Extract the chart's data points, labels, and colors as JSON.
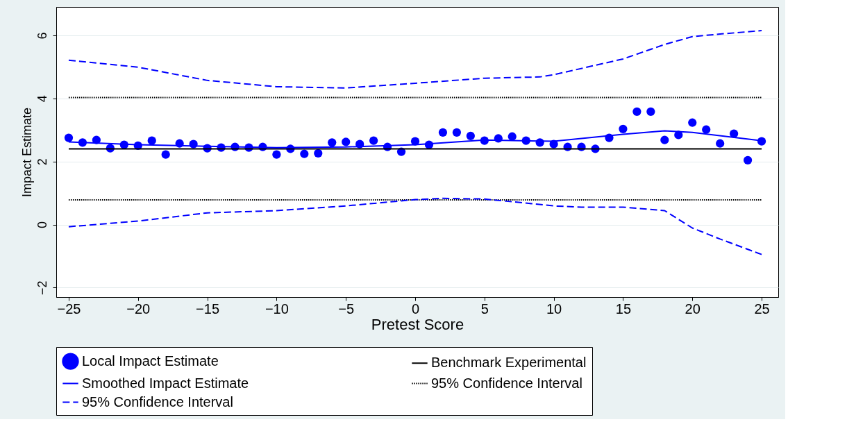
{
  "chart_data": {
    "type": "scatter",
    "xlabel": "Pretest Score",
    "ylabel": "Impact Estimate",
    "xlim": [
      -25.9,
      26.2
    ],
    "ylim": [
      -2.3,
      6.9
    ],
    "xticks": [
      -25,
      -20,
      -15,
      -10,
      -5,
      0,
      5,
      10,
      15,
      20,
      25
    ],
    "yticks": [
      -2,
      0,
      2,
      4,
      6
    ],
    "grid": "y",
    "legend": "bottom",
    "series": [
      {
        "name": "Local Impact Estimate",
        "type": "scatter",
        "marker": "circle",
        "color": "#0000ff",
        "x": [
          -25,
          -24,
          -23,
          -22,
          -21,
          -20,
          -19,
          -18,
          -17,
          -16,
          -15,
          -14,
          -13,
          -12,
          -11,
          -10,
          -9,
          -8,
          -7,
          -6,
          -5,
          -4,
          -3,
          -2,
          -1,
          0,
          1,
          2,
          3,
          4,
          5,
          6,
          7,
          8,
          9,
          10,
          11,
          12,
          13,
          14,
          15,
          16,
          17,
          18,
          19,
          20,
          21,
          22,
          23,
          24,
          25
        ],
        "values": [
          2.75,
          2.6,
          2.68,
          2.42,
          2.53,
          2.5,
          2.66,
          2.22,
          2.57,
          2.55,
          2.42,
          2.44,
          2.46,
          2.44,
          2.46,
          2.22,
          2.4,
          2.24,
          2.26,
          2.6,
          2.62,
          2.55,
          2.66,
          2.46,
          2.31,
          2.64,
          2.53,
          2.92,
          2.92,
          2.81,
          2.66,
          2.73,
          2.79,
          2.66,
          2.6,
          2.55,
          2.46,
          2.46,
          2.4,
          2.75,
          3.03,
          3.58,
          3.58,
          2.68,
          2.84,
          3.23,
          3.01,
          2.57,
          2.88,
          2.04,
          2.64
        ]
      },
      {
        "name": "Benchmark Experimental",
        "type": "line",
        "line_style": "solid",
        "color": "#000000",
        "x": [
          -25,
          25
        ],
        "values": [
          2.4,
          2.4
        ]
      },
      {
        "name": "Smoothed Impact Estimate",
        "type": "line",
        "line_style": "solid",
        "color": "#0000ff",
        "x": [
          -25,
          -20,
          -15,
          -10,
          -5,
          0,
          5,
          10,
          15,
          18,
          20,
          25
        ],
        "values": [
          2.62,
          2.53,
          2.48,
          2.44,
          2.46,
          2.53,
          2.68,
          2.64,
          2.86,
          2.97,
          2.92,
          2.66
        ]
      },
      {
        "name": "95% Confidence Interval",
        "type": "line",
        "line_style": "dotted",
        "color": "#000000",
        "x": [
          -25,
          25
        ],
        "values": [
          4.03,
          4.03
        ]
      },
      {
        "type": "line",
        "line_style": "dotted",
        "color": "#000000",
        "x": [
          -25,
          25
        ],
        "values": [
          0.78,
          0.78
        ]
      },
      {
        "name": "95% Confidence Interval",
        "type": "line",
        "line_style": "dashed",
        "color": "#0000ff",
        "x": [
          -25,
          -20,
          -15,
          -10,
          -5,
          0,
          5,
          9,
          10,
          15,
          18,
          20,
          22,
          25
        ],
        "values": [
          5.21,
          4.99,
          4.57,
          4.37,
          4.33,
          4.48,
          4.64,
          4.68,
          4.75,
          5.25,
          5.71,
          5.96,
          6.04,
          6.15
        ]
      },
      {
        "type": "line",
        "line_style": "dashed",
        "color": "#0000ff",
        "x": [
          -25,
          -20,
          -15,
          -10,
          -5,
          0,
          2,
          5,
          10,
          12,
          15,
          18,
          20,
          22,
          25
        ],
        "values": [
          -0.07,
          0.11,
          0.37,
          0.44,
          0.59,
          0.79,
          0.83,
          0.81,
          0.59,
          0.55,
          0.55,
          0.44,
          -0.11,
          -0.46,
          -0.95
        ]
      }
    ]
  }
}
